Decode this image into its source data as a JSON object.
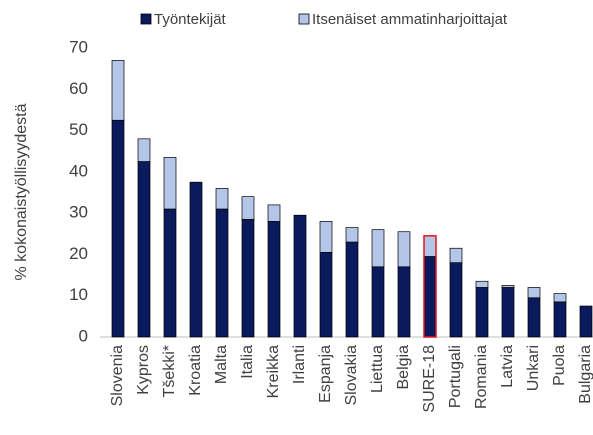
{
  "chart_data": {
    "type": "stacked_bar",
    "y_label": "% kokonaistyöllisyydestä",
    "categories": [
      "Slovenia",
      "Kypros",
      "Tšekki*",
      "Kroatia",
      "Malta",
      "Italia",
      "Kreikka",
      "Irlanti",
      "Espanja",
      "Slovakia",
      "Liettua",
      "Belgia",
      "SURE-18",
      "Portugali",
      "Romania",
      "Latvia",
      "Unkari",
      "Puola",
      "Bulgaria"
    ],
    "series": [
      {
        "name": "Työntekijät",
        "color": "#0b1a5c",
        "values": [
          52.5,
          42.5,
          31,
          37.5,
          31,
          28.5,
          28,
          29.5,
          20.5,
          23,
          17,
          17,
          19.5,
          18,
          12,
          12,
          9.5,
          8.5,
          7.5
        ]
      },
      {
        "name": "Itsenäiset ammatinharjoittajat",
        "color": "#b4c6e7",
        "values": [
          14.5,
          5.5,
          12.5,
          0,
          5,
          5.5,
          4,
          0,
          7.5,
          3.5,
          9,
          8.5,
          5,
          3.5,
          1.5,
          0.5,
          2.5,
          2,
          0
        ]
      }
    ],
    "highlight_category": "SURE-18",
    "highlight_color": "#e0161b",
    "ylim": [
      0,
      70
    ],
    "yticks": [
      0,
      10,
      20,
      30,
      40,
      50,
      60,
      70
    ],
    "grid": false,
    "legend": "top"
  }
}
